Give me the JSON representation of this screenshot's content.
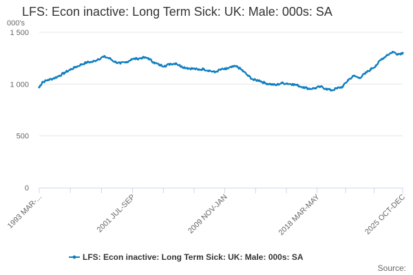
{
  "chart_data": {
    "type": "line",
    "title": "LFS: Econ inactive: Long Term Sick: UK: Male: 000s: SA",
    "ylabel": "000's",
    "ylim": [
      0,
      1500
    ],
    "yticks": [
      {
        "value": 0,
        "label": "0"
      },
      {
        "value": 500,
        "label": "500"
      },
      {
        "value": 1000,
        "label": "1 000"
      },
      {
        "value": 1500,
        "label": "1 500"
      }
    ],
    "xlim": [
      1993.2,
      2025.9
    ],
    "xticks": [
      {
        "value": 1993.2,
        "label": "1993 MAR-..."
      },
      {
        "value": 2001.6,
        "label": "2001 JUL-SEP"
      },
      {
        "value": 2009.9,
        "label": "2009 NOV-JAN"
      },
      {
        "value": 2018.2,
        "label": "2018 MAR-MAY"
      },
      {
        "value": 2025.9,
        "label": "2025 OCT-DEC"
      }
    ],
    "grid": true,
    "legend_position": "bottom-center",
    "color": "#0f7ebf",
    "series": [
      {
        "name": "LFS: Econ inactive: Long Term Sick: UK: Male: 000s: SA",
        "x": [
          1993.2,
          1993.5,
          1994.0,
          1994.5,
          1995.0,
          1995.5,
          1996.0,
          1996.5,
          1997.0,
          1997.5,
          1998.0,
          1998.5,
          1999.0,
          1999.5,
          2000.0,
          2000.5,
          2001.0,
          2001.5,
          2002.0,
          2002.5,
          2003.0,
          2003.5,
          2004.0,
          2004.5,
          2005.0,
          2005.5,
          2006.0,
          2006.5,
          2007.0,
          2007.5,
          2008.0,
          2008.5,
          2009.0,
          2009.5,
          2010.0,
          2010.5,
          2011.0,
          2011.5,
          2012.0,
          2012.5,
          2013.0,
          2013.5,
          2014.0,
          2014.5,
          2015.0,
          2015.5,
          2016.0,
          2016.5,
          2017.0,
          2017.5,
          2018.0,
          2018.5,
          2019.0,
          2019.5,
          2020.0,
          2020.5,
          2021.0,
          2021.5,
          2022.0,
          2022.5,
          2023.0,
          2023.5,
          2024.0,
          2024.5,
          2025.0,
          2025.5,
          2025.9
        ],
        "values": [
          970,
          1020,
          1040,
          1055,
          1080,
          1110,
          1140,
          1165,
          1190,
          1210,
          1215,
          1240,
          1265,
          1250,
          1215,
          1200,
          1210,
          1240,
          1245,
          1255,
          1250,
          1210,
          1185,
          1175,
          1195,
          1200,
          1170,
          1155,
          1150,
          1140,
          1145,
          1130,
          1115,
          1140,
          1145,
          1165,
          1170,
          1130,
          1080,
          1040,
          1035,
          1010,
          1000,
          990,
          1010,
          1005,
          1000,
          985,
          970,
          955,
          960,
          975,
          955,
          940,
          960,
          975,
          1040,
          1080,
          1060,
          1100,
          1140,
          1180,
          1240,
          1280,
          1310,
          1290,
          1300
        ]
      }
    ]
  },
  "footer": {
    "source_label": "Source:"
  }
}
